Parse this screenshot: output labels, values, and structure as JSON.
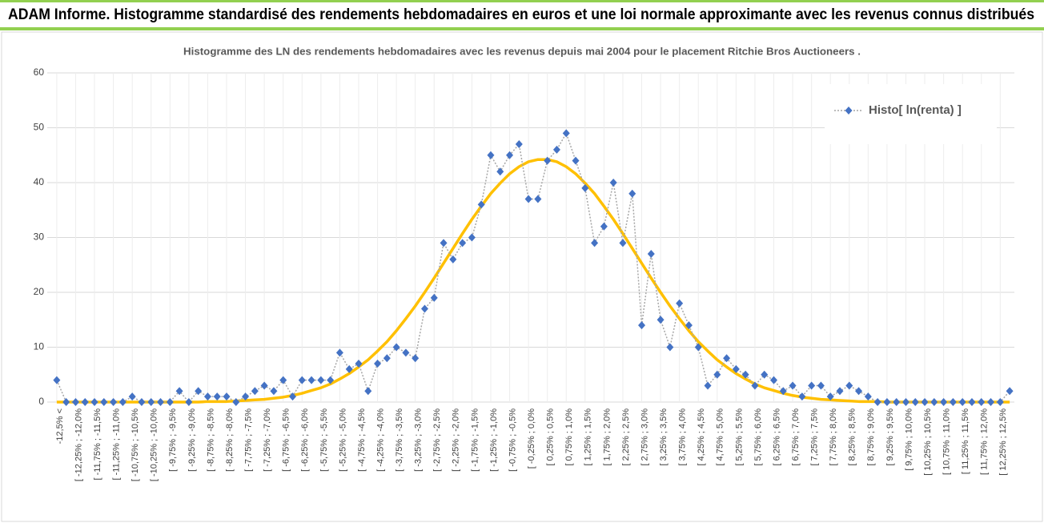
{
  "header": {
    "title": "ADAM Informe. Histogramme standardisé des rendements hebdomadaires en euros et une loi normale approximante avec les revenus connus distribués"
  },
  "chart_data": {
    "type": "line",
    "title": "Histogramme des LN des rendements hebdomadaires avec les revenus depuis mai 2004 pour le placement Ritchie Bros Auctioneers .",
    "categories": [
      "-12,5% <",
      null,
      "[ -12,25% ; -12,0%",
      null,
      "[ -11,75% ; -11,5%",
      null,
      "[ -11,25% ; -11,0%",
      null,
      "[ -10,75% ; -10,5%",
      null,
      "[ -10,25% ; -10,0%",
      null,
      "[ -9,75% ; -9,5%",
      null,
      "[ -9,25% ; -9,0%",
      null,
      "[ -8,75% ; -8,5%",
      null,
      "[ -8,25% ; -8,0%",
      null,
      "[ -7,75% ; -7,5%",
      null,
      "[ -7,25% ; -7,0%",
      null,
      "[ -6,75% ; -6,5%",
      null,
      "[ -6,25% ; -6,0%",
      null,
      "[ -5,75% ; -5,5%",
      null,
      "[ -5,25% ; -5,0%",
      null,
      "[ -4,75% ; -4,5%",
      null,
      "[ -4,25% ; -4,0%",
      null,
      "[ -3,75% ; -3,5%",
      null,
      "[ -3,25% ; -3,0%",
      null,
      "[ -2,75% ; -2,5%",
      null,
      "[ -2,25% ; -2,0%",
      null,
      "[ -1,75% ; -1,5%",
      null,
      "[ -1,25% ; -1,0%",
      null,
      "[ -0,75% ; -0,5%",
      null,
      "[ -0,25% ; 0,0%",
      null,
      "[ 0,25% ; 0,5%",
      null,
      "[ 0,75% ; 1,0%",
      null,
      "[ 1,25% ; 1,5%",
      null,
      "[ 1,75% ; 2,0%",
      null,
      "[ 2,25% ; 2,5%",
      null,
      "[ 2,75% ; 3,0%",
      null,
      "[ 3,25% ; 3,5%",
      null,
      "[ 3,75% ; 4,0%",
      null,
      "[ 4,25% ; 4,5%",
      null,
      "[ 4,75% ; 5,0%",
      null,
      "[ 5,25% ; 5,5%",
      null,
      "[ 5,75% ; 6,0%",
      null,
      "[ 6,25% ; 6,5%",
      null,
      "[ 6,75% ; 7,0%",
      null,
      "[ 7,25% ; 7,5%",
      null,
      "[ 7,75% ; 8,0%",
      null,
      "[ 8,25% ; 8,5%",
      null,
      "[ 8,75% ; 9,0%",
      null,
      "[ 9,25% ; 9,5%",
      null,
      "[ 9,75% ; 10,0%",
      null,
      "[ 10,25% ; 10,5%",
      null,
      "[ 10,75% ; 11,0%",
      null,
      "[ 11,25% ; 11,5%",
      null,
      "[ 11,75% ; 12,0%",
      null,
      "[ 12,25% ; 12,5%",
      null
    ],
    "series": [
      {
        "name": "Histo[ ln(renta) ]",
        "color": "#4472c4",
        "values": [
          4,
          0,
          0,
          0,
          0,
          0,
          0,
          0,
          1,
          0,
          0,
          0,
          0,
          2,
          0,
          2,
          1,
          1,
          1,
          0,
          1,
          2,
          3,
          2,
          4,
          1,
          4,
          4,
          4,
          4,
          9,
          6,
          7,
          2,
          7,
          8,
          10,
          9,
          8,
          17,
          19,
          29,
          26,
          29,
          30,
          36,
          45,
          42,
          45,
          47,
          37,
          37,
          44,
          46,
          49,
          44,
          39,
          29,
          32,
          40,
          29,
          38,
          14,
          27,
          15,
          10,
          18,
          14,
          10,
          3,
          5,
          8,
          6,
          5,
          3,
          5,
          4,
          2,
          3,
          1,
          3,
          3,
          1,
          2,
          3,
          2,
          1,
          0,
          0,
          0,
          0,
          0,
          0,
          0,
          0,
          0,
          0,
          0,
          0,
          0,
          0,
          2
        ]
      },
      {
        "color": "#ffc000",
        "values": [
          0,
          0,
          0,
          0,
          0,
          0,
          0,
          0,
          0,
          0,
          0,
          0,
          0,
          0,
          0,
          0,
          0.1,
          0.1,
          0.1,
          0.2,
          0.3,
          0.4,
          0.5,
          0.7,
          0.9,
          1.2,
          1.6,
          2.1,
          2.6,
          3.3,
          4.2,
          5.2,
          6.4,
          7.7,
          9.3,
          11,
          13,
          15.2,
          17.5,
          20,
          22.6,
          25.3,
          28,
          30.7,
          33.3,
          35.7,
          38,
          39.9,
          41.6,
          42.9,
          43.8,
          44.2,
          44.2,
          43.8,
          42.9,
          41.6,
          39.9,
          38,
          35.7,
          33.3,
          30.7,
          28,
          25.3,
          22.6,
          20,
          17.5,
          15.2,
          13,
          11,
          9.3,
          7.7,
          6.4,
          5.2,
          4.2,
          3.3,
          2.6,
          2.1,
          1.6,
          1.2,
          0.9,
          0.7,
          0.5,
          0.4,
          0.3,
          0.2,
          0.1,
          0.1,
          0.1,
          0,
          0,
          0,
          0,
          0,
          0,
          0,
          0,
          0,
          0,
          0,
          0,
          0,
          0
        ]
      }
    ],
    "ylim": [
      0,
      60
    ],
    "yticks": [
      0,
      10,
      20,
      30,
      40,
      50,
      60
    ],
    "grid": true,
    "legend": "upper right"
  }
}
